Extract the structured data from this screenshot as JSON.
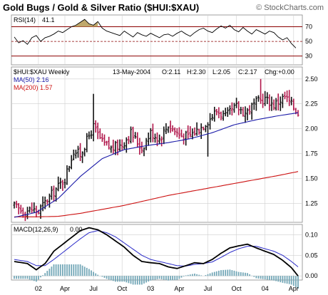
{
  "title": "Gold Bugs / Gold & Silver Ratio ($HUI:$XAU)",
  "watermark": "© StockCharts.com",
  "colors": {
    "price_up": "#111111",
    "price_down": "#b0154a",
    "ma50": "#1a1aa8",
    "ma200": "#cc1111",
    "rsi_line": "#000000",
    "rsi_fill": "#bfa86b",
    "macd_line": "#000000",
    "macd_signal": "#2a2ac8",
    "histogram": "#74a8b8",
    "grid": "#cfcfcf",
    "panel_line": "#8b0000"
  },
  "chart_data": [
    {
      "panel": "rsi",
      "type": "line",
      "label": "RSI(14)",
      "value_text": "41.1",
      "ylim": [
        18,
        86
      ],
      "ticks": [
        "70",
        "50",
        "30"
      ],
      "tick_values": [
        70,
        50,
        30
      ],
      "x": [
        0,
        2,
        4,
        6,
        8,
        10,
        12,
        14,
        16,
        18,
        20,
        22,
        24,
        26,
        28,
        30,
        32,
        34,
        36,
        38,
        40,
        42,
        44,
        46,
        48,
        50,
        52,
        54,
        56,
        58,
        60,
        62,
        64,
        66,
        68,
        70,
        72,
        74,
        76,
        78,
        80,
        82,
        84,
        86,
        88,
        90,
        92,
        94,
        96,
        98,
        100,
        102,
        104,
        106,
        108,
        110,
        112,
        114,
        116,
        118,
        120,
        122,
        124,
        126,
        128
      ],
      "values": [
        56,
        48,
        51,
        46,
        55,
        58,
        50,
        55,
        57,
        60,
        64,
        62,
        66,
        70,
        72,
        76,
        80,
        74,
        72,
        77,
        68,
        64,
        62,
        60,
        58,
        64,
        60,
        56,
        62,
        59,
        57,
        61,
        58,
        55,
        59,
        60,
        57,
        61,
        64,
        60,
        57,
        62,
        66,
        68,
        64,
        62,
        67,
        71,
        68,
        72,
        66,
        63,
        69,
        64,
        60,
        66,
        63,
        60,
        64,
        62,
        56,
        52,
        55,
        47,
        41
      ]
    },
    {
      "panel": "price",
      "type": "ohlc",
      "label": "$HUI:$XAU Weekly",
      "date": "13-May-2004",
      "ohlc_text": {
        "open": "O:2.11",
        "high": "H:2.30",
        "low": "L:2.05",
        "close": "C:2.17",
        "change": "Chg:+0.00"
      },
      "series_labels": {
        "ma50": "MA(50) 2.16",
        "ma200": "MA(200) 1.57"
      },
      "ylim": [
        1.06,
        2.62
      ],
      "ticks": [
        "2.50",
        "2.25",
        "2.00",
        "1.75",
        "1.50",
        "1.25"
      ],
      "tick_values": [
        2.5,
        2.25,
        2.0,
        1.75,
        1.5,
        1.25
      ],
      "x_ticks": [
        "02",
        "Apr",
        "Jul",
        "Oct",
        "03",
        "Apr",
        "Jul",
        "Oct",
        "04",
        "Apr"
      ],
      "x_tick_positions": [
        11,
        23,
        36,
        49,
        62,
        75,
        88,
        101,
        114,
        127
      ],
      "close_anchors_x": [
        0,
        4,
        8,
        11,
        14,
        17,
        20,
        23,
        27,
        30,
        33,
        36,
        40,
        44,
        49,
        53,
        58,
        62,
        66,
        70,
        75,
        79,
        84,
        88,
        92,
        96,
        101,
        105,
        110,
        114,
        118,
        123,
        127,
        129
      ],
      "close_anchors_y": [
        1.22,
        1.17,
        1.19,
        1.17,
        1.26,
        1.34,
        1.42,
        1.5,
        1.78,
        1.74,
        1.88,
        2.02,
        1.86,
        1.8,
        1.84,
        1.96,
        1.8,
        1.96,
        1.9,
        2.04,
        1.94,
        1.92,
        2.0,
        2.08,
        2.18,
        2.12,
        2.22,
        2.16,
        2.26,
        2.3,
        2.24,
        2.32,
        2.22,
        2.16
      ],
      "spikes": [
        {
          "x": 36,
          "high": 2.35
        },
        {
          "x": 88,
          "low": 1.72
        },
        {
          "x": 112,
          "high": 2.5
        }
      ],
      "ma50_x": [
        0,
        10,
        20,
        30,
        40,
        50,
        60,
        70,
        80,
        90,
        100,
        110,
        120,
        129
      ],
      "ma50_y": [
        1.11,
        1.16,
        1.3,
        1.52,
        1.7,
        1.79,
        1.83,
        1.86,
        1.9,
        1.96,
        2.04,
        2.09,
        2.13,
        2.16
      ],
      "ma200_x": [
        0,
        10,
        20,
        30,
        40,
        50,
        60,
        70,
        80,
        90,
        100,
        110,
        120,
        129
      ],
      "ma200_y": [
        1.115,
        1.115,
        1.12,
        1.15,
        1.19,
        1.23,
        1.28,
        1.33,
        1.37,
        1.41,
        1.45,
        1.49,
        1.53,
        1.57
      ]
    },
    {
      "panel": "macd",
      "type": "line",
      "label": "MACD(12,26,9)",
      "value_text": "0.00",
      "ylim": [
        -0.01,
        0.125
      ],
      "ticks": [
        "0.10",
        "0.05",
        "0.00"
      ],
      "tick_values": [
        0.1,
        0.05,
        0.0
      ],
      "macd_x": [
        0,
        6,
        10,
        14,
        18,
        24,
        30,
        34,
        38,
        42,
        46,
        50,
        54,
        58,
        62,
        66,
        70,
        74,
        78,
        82,
        86,
        90,
        94,
        98,
        102,
        106,
        110,
        114,
        118,
        122,
        126,
        129
      ],
      "macd_y": [
        0.035,
        0.03,
        0.015,
        0.03,
        0.06,
        0.085,
        0.11,
        0.117,
        0.112,
        0.1,
        0.085,
        0.07,
        0.05,
        0.035,
        0.032,
        0.03,
        0.022,
        0.018,
        0.025,
        0.032,
        0.03,
        0.04,
        0.055,
        0.068,
        0.073,
        0.077,
        0.068,
        0.06,
        0.052,
        0.038,
        0.02,
        0.0
      ],
      "signal_x": [
        0,
        6,
        10,
        14,
        18,
        24,
        30,
        34,
        38,
        42,
        46,
        50,
        54,
        58,
        62,
        66,
        70,
        74,
        78,
        82,
        86,
        90,
        94,
        98,
        102,
        106,
        110,
        114,
        118,
        122,
        126,
        129
      ],
      "signal_y": [
        0.04,
        0.035,
        0.025,
        0.025,
        0.04,
        0.065,
        0.09,
        0.105,
        0.11,
        0.105,
        0.095,
        0.08,
        0.065,
        0.05,
        0.04,
        0.035,
        0.03,
        0.025,
        0.024,
        0.028,
        0.03,
        0.034,
        0.045,
        0.057,
        0.066,
        0.072,
        0.072,
        0.066,
        0.06,
        0.05,
        0.035,
        0.022
      ]
    }
  ]
}
